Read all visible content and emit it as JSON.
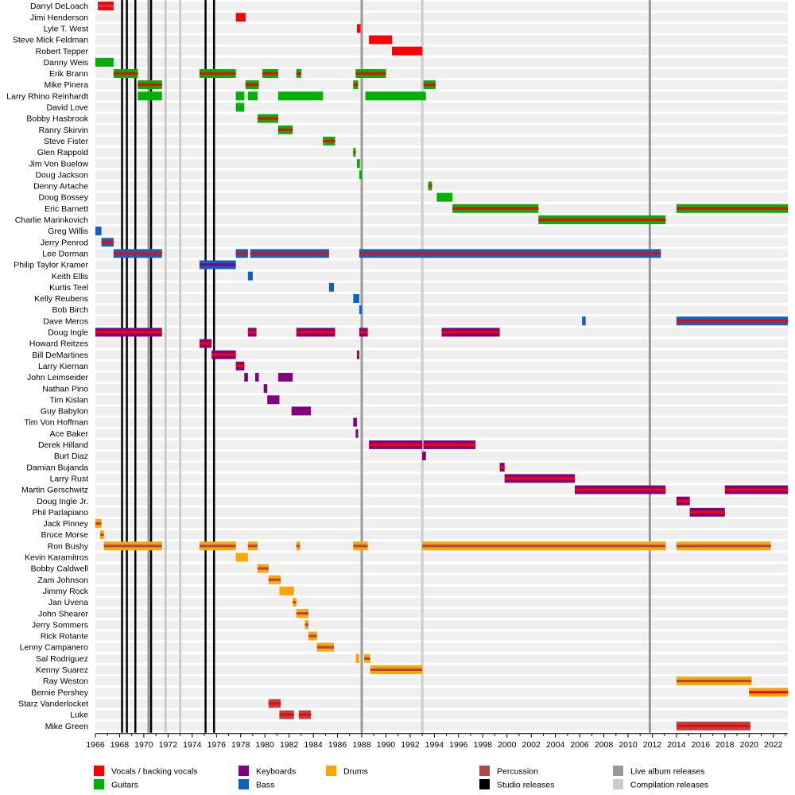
{
  "chart_data": {
    "type": "timeline",
    "title": "",
    "x_range": [
      1966,
      2023.2
    ],
    "x_ticks": [
      "1966",
      "1968",
      "1970",
      "1972",
      "1974",
      "1976",
      "1978",
      "1980",
      "1982",
      "1984",
      "1986",
      "1988",
      "1990",
      "1992",
      "1994",
      "1996",
      "1998",
      "2000",
      "2002",
      "2004",
      "2006",
      "2008",
      "2010",
      "2012",
      "2014",
      "2016",
      "2018",
      "2020",
      "2022"
    ],
    "role_colors": {
      "vocals": "#ff0000",
      "guitars": "#00b000",
      "keyboards": "#800080",
      "bass": "#1060c0",
      "drums": "#ffa500",
      "percussion": "#b04848",
      "studio": "#000000",
      "live": "#999999",
      "compilation": "#cccccc"
    },
    "legend": [
      {
        "key": "vocals",
        "label": "Vocals / backing vocals"
      },
      {
        "key": "guitars",
        "label": "Guitars"
      },
      {
        "key": "keyboards",
        "label": "Keyboards"
      },
      {
        "key": "bass",
        "label": "Bass"
      },
      {
        "key": "drums",
        "label": "Drums"
      },
      {
        "key": "percussion",
        "label": "Percussion"
      },
      {
        "key": "studio",
        "label": "Studio releases"
      },
      {
        "key": "live",
        "label": "Live album releases"
      },
      {
        "key": "compilation",
        "label": "Compilation releases"
      }
    ],
    "release_lines": [
      {
        "type": "studio",
        "year": 1968.2
      },
      {
        "type": "studio",
        "year": 1968.6
      },
      {
        "type": "studio",
        "year": 1969.3
      },
      {
        "type": "studio",
        "year": 1970.6
      },
      {
        "type": "studio",
        "year": 1975.1
      },
      {
        "type": "studio",
        "year": 1975.8
      },
      {
        "type": "live",
        "year": 1970.4
      },
      {
        "type": "live",
        "year": 1988.0
      },
      {
        "type": "live",
        "year": 2011.8
      },
      {
        "type": "compilation",
        "year": 1971.8
      },
      {
        "type": "compilation",
        "year": 1973.0
      },
      {
        "type": "compilation",
        "year": 1993.0
      }
    ],
    "members": [
      {
        "name": "Darryl DeLoach",
        "bars": [
          {
            "s": 1966.2,
            "e": 1967.5,
            "c": "vocals",
            "st": "percussion"
          }
        ]
      },
      {
        "name": "Jimi Henderson",
        "bars": [
          {
            "s": 1977.6,
            "e": 1978.4,
            "c": "vocals"
          }
        ]
      },
      {
        "name": "Lyle T. West",
        "bars": [
          {
            "s": 1987.6,
            "e": 1987.9,
            "c": "vocals"
          }
        ]
      },
      {
        "name": "Steve Mick Feldman",
        "bars": [
          {
            "s": 1988.6,
            "e": 1990.5,
            "c": "vocals"
          }
        ]
      },
      {
        "name": "Robert Tepper",
        "bars": [
          {
            "s": 1990.5,
            "e": 1993.0,
            "c": "vocals"
          }
        ]
      },
      {
        "name": "Danny Weis",
        "bars": [
          {
            "s": 1966.0,
            "e": 1967.5,
            "c": "guitars"
          }
        ]
      },
      {
        "name": "Erik Brann",
        "bars": [
          {
            "s": 1967.5,
            "e": 1969.5,
            "c": "guitars",
            "st": "vocals"
          },
          {
            "s": 1974.6,
            "e": 1977.6,
            "c": "guitars",
            "st": "vocals"
          },
          {
            "s": 1979.8,
            "e": 1981.1,
            "c": "guitars",
            "st": "vocals"
          },
          {
            "s": 1982.6,
            "e": 1983.0,
            "c": "guitars",
            "st": "vocals"
          },
          {
            "s": 1987.5,
            "e": 1990.0,
            "c": "guitars",
            "st": "vocals"
          }
        ]
      },
      {
        "name": "Mike Pinera",
        "bars": [
          {
            "s": 1969.5,
            "e": 1971.5,
            "c": "guitars",
            "st": "vocals"
          },
          {
            "s": 1978.4,
            "e": 1979.5,
            "c": "guitars",
            "st": "vocals"
          },
          {
            "s": 1987.3,
            "e": 1987.7,
            "c": "guitars",
            "st": "vocals"
          },
          {
            "s": 1993.1,
            "e": 1994.1,
            "c": "guitars",
            "st": "vocals"
          }
        ]
      },
      {
        "name": "Larry Rhino Reinhardt",
        "bars": [
          {
            "s": 1969.5,
            "e": 1971.5,
            "c": "guitars"
          },
          {
            "s": 1977.6,
            "e": 1978.3,
            "c": "guitars"
          },
          {
            "s": 1978.6,
            "e": 1979.4,
            "c": "guitars"
          },
          {
            "s": 1981.1,
            "e": 1984.8,
            "c": "guitars"
          },
          {
            "s": 1988.3,
            "e": 1993.3,
            "c": "guitars"
          }
        ]
      },
      {
        "name": "David Love",
        "bars": [
          {
            "s": 1977.6,
            "e": 1978.3,
            "c": "guitars"
          }
        ]
      },
      {
        "name": "Bobby Hasbrook",
        "bars": [
          {
            "s": 1979.4,
            "e": 1981.1,
            "c": "guitars",
            "st": "vocals"
          }
        ]
      },
      {
        "name": "Ranry Skirvin",
        "bars": [
          {
            "s": 1981.1,
            "e": 1982.3,
            "c": "guitars",
            "st": "vocals"
          }
        ]
      },
      {
        "name": "Steve Fister",
        "bars": [
          {
            "s": 1984.8,
            "e": 1985.8,
            "c": "guitars",
            "st": "vocals"
          }
        ]
      },
      {
        "name": "Glen Rappold",
        "bars": [
          {
            "s": 1987.3,
            "e": 1987.5,
            "c": "guitars",
            "st": "vocals"
          }
        ]
      },
      {
        "name": "Jim Von Buelow",
        "bars": [
          {
            "s": 1987.6,
            "e": 1987.85,
            "c": "guitars"
          }
        ]
      },
      {
        "name": "Doug Jackson",
        "bars": [
          {
            "s": 1987.8,
            "e": 1988.0,
            "c": "guitars"
          }
        ]
      },
      {
        "name": "Denny Artache",
        "bars": [
          {
            "s": 1993.5,
            "e": 1993.8,
            "c": "guitars",
            "st": "vocals"
          }
        ]
      },
      {
        "name": "Doug Bossey",
        "bars": [
          {
            "s": 1994.2,
            "e": 1995.5,
            "c": "guitars"
          }
        ]
      },
      {
        "name": "Eric Barnett",
        "bars": [
          {
            "s": 1995.5,
            "e": 2002.6,
            "c": "guitars",
            "st": "vocals"
          },
          {
            "s": 2014.0,
            "e": 2023.2,
            "c": "guitars",
            "st": "vocals"
          }
        ]
      },
      {
        "name": "Charlie Marinkovich",
        "bars": [
          {
            "s": 2002.6,
            "e": 2013.1,
            "c": "guitars",
            "st": "vocals"
          }
        ]
      },
      {
        "name": "Greg Willis",
        "bars": [
          {
            "s": 1966.0,
            "e": 1966.5,
            "c": "bass"
          }
        ]
      },
      {
        "name": "Jerry Penrod",
        "bars": [
          {
            "s": 1966.5,
            "e": 1967.5,
            "c": "bass",
            "st": "vocals"
          }
        ]
      },
      {
        "name": "Lee Dorman",
        "bars": [
          {
            "s": 1967.5,
            "e": 1971.5,
            "c": "bass",
            "st": "vocals"
          },
          {
            "s": 1977.6,
            "e": 1978.6,
            "c": "bass",
            "st": "vocals"
          },
          {
            "s": 1978.8,
            "e": 1985.3,
            "c": "bass",
            "st": "vocals"
          },
          {
            "s": 1987.8,
            "e": 2012.7,
            "c": "bass",
            "st": "vocals"
          }
        ]
      },
      {
        "name": "Philip Taylor Kramer",
        "bars": [
          {
            "s": 1974.6,
            "e": 1977.6,
            "c": "bass",
            "st": "keyboards"
          }
        ]
      },
      {
        "name": "Keith Ellis",
        "bars": [
          {
            "s": 1978.6,
            "e": 1979.0,
            "c": "bass"
          }
        ]
      },
      {
        "name": "Kurtis Teel",
        "bars": [
          {
            "s": 1985.3,
            "e": 1985.7,
            "c": "bass"
          }
        ]
      },
      {
        "name": "Kelly Reubens",
        "bars": [
          {
            "s": 1987.3,
            "e": 1987.8,
            "c": "bass"
          }
        ]
      },
      {
        "name": "Bob Birch",
        "bars": [
          {
            "s": 1987.8,
            "e": 1988.0,
            "c": "bass"
          }
        ]
      },
      {
        "name": "Dave Meros",
        "bars": [
          {
            "s": 2006.2,
            "e": 2006.5,
            "c": "bass"
          },
          {
            "s": 2014.0,
            "e": 2023.2,
            "c": "bass",
            "st": "vocals"
          }
        ]
      },
      {
        "name": "Doug Ingle",
        "bars": [
          {
            "s": 1966.0,
            "e": 1971.5,
            "c": "keyboards",
            "st": "vocals"
          },
          {
            "s": 1978.6,
            "e": 1979.3,
            "c": "keyboards",
            "st": "vocals"
          },
          {
            "s": 1982.6,
            "e": 1985.8,
            "c": "keyboards",
            "st": "vocals"
          },
          {
            "s": 1987.8,
            "e": 1988.5,
            "c": "keyboards",
            "st": "vocals"
          },
          {
            "s": 1994.6,
            "e": 1999.4,
            "c": "keyboards",
            "st": "vocals"
          }
        ]
      },
      {
        "name": "Howard Reitzes",
        "bars": [
          {
            "s": 1974.6,
            "e": 1975.6,
            "c": "keyboards",
            "st": "vocals"
          }
        ]
      },
      {
        "name": "Bill DeMartines",
        "bars": [
          {
            "s": 1975.6,
            "e": 1977.6,
            "c": "keyboards",
            "st": "vocals"
          },
          {
            "s": 1987.6,
            "e": 1987.8,
            "c": "keyboards",
            "st": "vocals"
          }
        ]
      },
      {
        "name": "Larry Kiernan",
        "bars": [
          {
            "s": 1977.6,
            "e": 1978.3,
            "c": "keyboards",
            "st": "vocals"
          }
        ]
      },
      {
        "name": "John Leimseider",
        "bars": [
          {
            "s": 1978.3,
            "e": 1978.6,
            "c": "keyboards"
          },
          {
            "s": 1979.2,
            "e": 1979.5,
            "c": "keyboards"
          },
          {
            "s": 1981.1,
            "e": 1982.3,
            "c": "keyboards"
          }
        ]
      },
      {
        "name": "Nathan Pino",
        "bars": [
          {
            "s": 1979.9,
            "e": 1980.2,
            "c": "keyboards"
          }
        ]
      },
      {
        "name": "Tim Kislan",
        "bars": [
          {
            "s": 1980.2,
            "e": 1981.2,
            "c": "keyboards"
          }
        ]
      },
      {
        "name": "Guy Babylon",
        "bars": [
          {
            "s": 1982.2,
            "e": 1983.8,
            "c": "keyboards"
          }
        ]
      },
      {
        "name": "Tim Von Hoffman",
        "bars": [
          {
            "s": 1987.3,
            "e": 1987.6,
            "c": "keyboards"
          }
        ]
      },
      {
        "name": "Ace Baker",
        "bars": [
          {
            "s": 1987.5,
            "e": 1987.7,
            "c": "keyboards"
          }
        ]
      },
      {
        "name": "Derek Hilland",
        "bars": [
          {
            "s": 1988.6,
            "e": 1993.0,
            "c": "keyboards",
            "st": "vocals"
          },
          {
            "s": 1993.1,
            "e": 1997.4,
            "c": "keyboards",
            "st": "vocals"
          }
        ]
      },
      {
        "name": "Burt Diaz",
        "bars": [
          {
            "s": 1993.0,
            "e": 1993.3,
            "c": "keyboards"
          }
        ]
      },
      {
        "name": "Damian Bujanda",
        "bars": [
          {
            "s": 1999.4,
            "e": 1999.8,
            "c": "keyboards",
            "st": "vocals"
          }
        ]
      },
      {
        "name": "Larry Rust",
        "bars": [
          {
            "s": 1999.8,
            "e": 2005.6,
            "c": "keyboards",
            "st": "vocals"
          }
        ]
      },
      {
        "name": "Martin Gerschwitz",
        "bars": [
          {
            "s": 2005.6,
            "e": 2013.1,
            "c": "keyboards",
            "st": "vocals"
          },
          {
            "s": 2018.0,
            "e": 2023.2,
            "c": "keyboards",
            "st": "vocals"
          }
        ]
      },
      {
        "name": "Doug Ingle Jr.",
        "bars": [
          {
            "s": 2014.0,
            "e": 2015.1,
            "c": "keyboards",
            "st": "vocals"
          }
        ]
      },
      {
        "name": "Phil Parlapiano",
        "bars": [
          {
            "s": 2015.1,
            "e": 2018.0,
            "c": "keyboards",
            "st": "vocals"
          }
        ]
      },
      {
        "name": "Jack Pinney",
        "bars": [
          {
            "s": 1966.0,
            "e": 1966.5,
            "c": "drums",
            "st": "percussion"
          }
        ]
      },
      {
        "name": "Bruce Morse",
        "bars": [
          {
            "s": 1966.4,
            "e": 1966.7,
            "c": "drums",
            "st": "percussion"
          }
        ]
      },
      {
        "name": "Ron Bushy",
        "bars": [
          {
            "s": 1966.7,
            "e": 1971.5,
            "c": "drums",
            "st": "percussion"
          },
          {
            "s": 1974.6,
            "e": 1977.6,
            "c": "drums",
            "st": "percussion"
          },
          {
            "s": 1978.6,
            "e": 1979.4,
            "c": "drums",
            "st": "percussion"
          },
          {
            "s": 1982.6,
            "e": 1982.9,
            "c": "drums",
            "st": "percussion"
          },
          {
            "s": 1987.3,
            "e": 1987.8,
            "c": "drums",
            "st": "percussion"
          },
          {
            "s": 1987.8,
            "e": 1988.5,
            "c": "drums",
            "st": "percussion"
          },
          {
            "s": 1993.0,
            "e": 2013.1,
            "c": "drums",
            "st": "percussion"
          },
          {
            "s": 2014.0,
            "e": 2021.8,
            "c": "drums",
            "st": "percussion"
          }
        ]
      },
      {
        "name": "Kevin Karamitros",
        "bars": [
          {
            "s": 1977.6,
            "e": 1978.6,
            "c": "drums"
          }
        ]
      },
      {
        "name": "Bobby Caldwell",
        "bars": [
          {
            "s": 1979.4,
            "e": 1980.3,
            "c": "drums",
            "st": "percussion"
          }
        ]
      },
      {
        "name": "Zam Johnson",
        "bars": [
          {
            "s": 1980.3,
            "e": 1981.3,
            "c": "drums",
            "st": "percussion"
          }
        ]
      },
      {
        "name": "Jimmy Rock",
        "bars": [
          {
            "s": 1981.2,
            "e": 1982.4,
            "c": "drums"
          }
        ]
      },
      {
        "name": "Jan Uvena",
        "bars": [
          {
            "s": 1982.3,
            "e": 1982.6,
            "c": "drums",
            "st": "percussion"
          }
        ]
      },
      {
        "name": "John Shearer",
        "bars": [
          {
            "s": 1982.6,
            "e": 1983.6,
            "c": "drums",
            "st": "percussion"
          }
        ]
      },
      {
        "name": "Jerry Sommers",
        "bars": [
          {
            "s": 1983.3,
            "e": 1983.6,
            "c": "drums",
            "st": "percussion"
          }
        ]
      },
      {
        "name": "Rick Rotante",
        "bars": [
          {
            "s": 1983.6,
            "e": 1984.3,
            "c": "drums",
            "st": "percussion"
          }
        ]
      },
      {
        "name": "Lenny Campanero",
        "bars": [
          {
            "s": 1984.3,
            "e": 1985.7,
            "c": "drums",
            "st": "percussion"
          }
        ]
      },
      {
        "name": "Sal Rodriguez",
        "bars": [
          {
            "s": 1987.5,
            "e": 1987.8,
            "c": "drums"
          },
          {
            "s": 1988.2,
            "e": 1988.7,
            "c": "drums",
            "st": "percussion"
          }
        ]
      },
      {
        "name": "Kenny Suarez",
        "bars": [
          {
            "s": 1988.7,
            "e": 1993.0,
            "c": "drums",
            "st": "percussion"
          }
        ]
      },
      {
        "name": "Ray Weston",
        "bars": [
          {
            "s": 2014.0,
            "e": 2020.2,
            "c": "drums",
            "st": "percussion"
          }
        ]
      },
      {
        "name": "Bernie Pershey",
        "bars": [
          {
            "s": 2020.0,
            "e": 2023.2,
            "c": "drums",
            "st": "vocals"
          }
        ]
      },
      {
        "name": "Starz Vanderlocket",
        "bars": [
          {
            "s": 1980.3,
            "e": 1981.3,
            "c": "percussion",
            "st": "vocals"
          }
        ]
      },
      {
        "name": "Luke",
        "bars": [
          {
            "s": 1981.2,
            "e": 1982.4,
            "c": "percussion",
            "st": "vocals"
          },
          {
            "s": 1982.8,
            "e": 1983.8,
            "c": "percussion",
            "st": "vocals"
          }
        ]
      },
      {
        "name": "Mike Green",
        "bars": [
          {
            "s": 2014.0,
            "e": 2020.1,
            "c": "percussion",
            "st": "vocals"
          }
        ]
      }
    ]
  }
}
